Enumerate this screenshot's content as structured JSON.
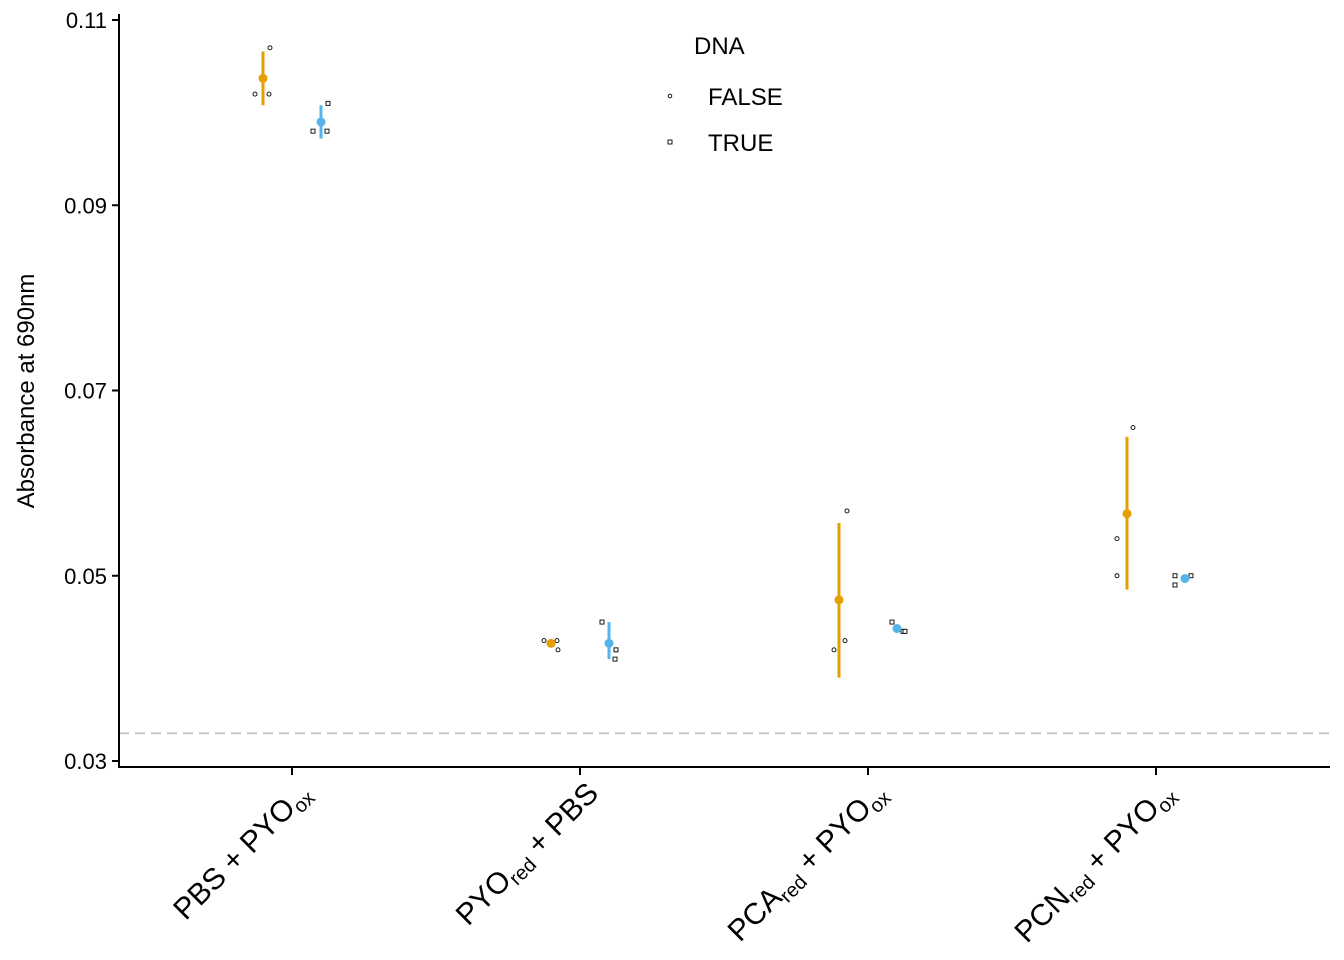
{
  "chart_data": {
    "type": "scatter",
    "ylabel": "Absorbance at 690nm",
    "ylim": [
      0.0295,
      0.1115
    ],
    "yticks": [
      0.03,
      0.05,
      0.07,
      0.09,
      0.11
    ],
    "yticklabels": [
      "0.03",
      "0.05",
      "0.07",
      "0.09",
      "0.11"
    ],
    "reference_line": {
      "y": 0.033,
      "style": "dashed",
      "color": "#c8c8c8"
    },
    "categories": [
      {
        "main1": "PBS + PYO",
        "sub1": "ox",
        "main2": "",
        "sub2": ""
      },
      {
        "main1": "PYO",
        "sub1": "red",
        "main2": " + PBS",
        "sub2": ""
      },
      {
        "main1": "PCA",
        "sub1": "red",
        "main2": " + PYO",
        "sub2": "ox"
      },
      {
        "main1": "PCN",
        "sub1": "red",
        "main2": " + PYO",
        "sub2": "ox"
      }
    ],
    "legend": {
      "title": "DNA",
      "position": "top-center",
      "entries": [
        {
          "label": "FALSE",
          "shape": "circle"
        },
        {
          "label": "TRUE",
          "shape": "square"
        }
      ]
    },
    "series": [
      {
        "name": "FALSE",
        "color": "#E69F00",
        "shape": "circle",
        "summary": [
          {
            "mean": 0.1037,
            "low": 0.1008,
            "high": 0.1066
          },
          {
            "mean": 0.0427,
            "low": 0.0427,
            "high": 0.0427
          },
          {
            "mean": 0.0474,
            "low": 0.039,
            "high": 0.0557
          },
          {
            "mean": 0.0567,
            "low": 0.0485,
            "high": 0.065
          }
        ],
        "points": [
          [
            0.102,
            0.102,
            0.107
          ],
          [
            0.043,
            0.043,
            0.042
          ],
          [
            0.042,
            0.043,
            0.057
          ],
          [
            0.05,
            0.054,
            0.066
          ]
        ]
      },
      {
        "name": "TRUE",
        "color": "#56B4E9",
        "shape": "square",
        "summary": [
          {
            "mean": 0.099,
            "low": 0.0972,
            "high": 0.1008
          },
          {
            "mean": 0.0427,
            "low": 0.041,
            "high": 0.045
          },
          {
            "mean": 0.0443,
            "low": 0.0441,
            "high": 0.0447
          },
          {
            "mean": 0.0497,
            "low": 0.0494,
            "high": 0.05
          }
        ],
        "points": [
          [
            0.098,
            0.098,
            0.101
          ],
          [
            0.045,
            0.041,
            0.042
          ],
          [
            0.045,
            0.044,
            0.044
          ],
          [
            0.05,
            0.049,
            0.05
          ]
        ]
      }
    ]
  }
}
